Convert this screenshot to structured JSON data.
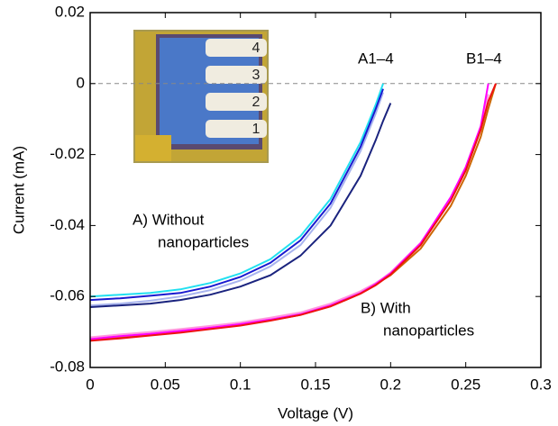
{
  "chart_data": {
    "type": "line",
    "x_label": "Voltage (V)",
    "y_label": "Current (mA)",
    "x": [
      0,
      0.02,
      0.04,
      0.06,
      0.08,
      0.1,
      0.12,
      0.14,
      0.16,
      0.18,
      0.19,
      0.195,
      0.2,
      0.22,
      0.24,
      0.25,
      0.26,
      0.265,
      0.27
    ],
    "series": [
      {
        "color": "#22e0f0",
        "values": [
          -0.06,
          -0.0595,
          -0.059,
          -0.058,
          -0.0562,
          -0.0535,
          -0.0495,
          -0.043,
          -0.0325,
          -0.0165,
          -0.006,
          0,
          null,
          null,
          null,
          null,
          null,
          null,
          null
        ]
      },
      {
        "color": "#a8b4ee",
        "values": [
          -0.0625,
          -0.062,
          -0.0612,
          -0.06,
          -0.0582,
          -0.0555,
          -0.0515,
          -0.0455,
          -0.035,
          -0.019,
          -0.0085,
          -0.0025,
          null,
          null,
          null,
          null,
          null,
          null,
          null
        ]
      },
      {
        "color": "#1a1ad0",
        "values": [
          -0.061,
          -0.0605,
          -0.0598,
          -0.059,
          -0.0572,
          -0.0545,
          -0.0505,
          -0.0442,
          -0.0338,
          -0.0178,
          -0.0072,
          -0.0015,
          null,
          null,
          null,
          null,
          null,
          null,
          null
        ]
      },
      {
        "color": "#1a237e",
        "values": [
          -0.063,
          -0.0625,
          -0.062,
          -0.061,
          -0.0595,
          -0.0572,
          -0.054,
          -0.0485,
          -0.04,
          -0.026,
          -0.016,
          -0.0105,
          -0.0055,
          null,
          null,
          null,
          null,
          null,
          null
        ]
      },
      {
        "color": "#cc6600",
        "values": [
          -0.0722,
          -0.0715,
          -0.0708,
          -0.07,
          -0.069,
          -0.068,
          -0.0667,
          -0.0652,
          -0.0628,
          -0.0592,
          -0.0568,
          -0.0553,
          -0.054,
          -0.0465,
          -0.0345,
          -0.026,
          -0.015,
          -0.007,
          0
        ]
      },
      {
        "color": "#ff99dd",
        "values": [
          -0.0715,
          -0.0707,
          -0.07,
          -0.0692,
          -0.0683,
          -0.0673,
          -0.066,
          -0.0645,
          -0.062,
          -0.0585,
          -0.0562,
          -0.0548,
          -0.0532,
          -0.0448,
          -0.0325,
          -0.024,
          -0.0125,
          -0.003,
          null
        ]
      },
      {
        "color": "#ff00ff",
        "values": [
          -0.072,
          -0.0712,
          -0.0705,
          -0.0697,
          -0.0688,
          -0.0678,
          -0.0665,
          -0.065,
          -0.0625,
          -0.059,
          -0.0565,
          -0.055,
          -0.0535,
          -0.045,
          -0.032,
          -0.0235,
          -0.012,
          0,
          null
        ]
      },
      {
        "color": "#ee1111",
        "values": [
          -0.0725,
          -0.0718,
          -0.071,
          -0.0702,
          -0.0692,
          -0.0682,
          -0.0668,
          -0.0652,
          -0.0628,
          -0.0592,
          -0.0568,
          -0.0553,
          -0.0538,
          -0.0455,
          -0.033,
          -0.0245,
          -0.013,
          -0.005,
          0
        ]
      }
    ],
    "xlim": [
      0,
      0.3
    ],
    "xticks": [
      0,
      0.05,
      0.1,
      0.15,
      0.2,
      0.25,
      0.3
    ],
    "ylim": [
      -0.08,
      0.02
    ],
    "yticks": [
      0.02,
      0,
      -0.02,
      -0.04,
      -0.06,
      -0.08
    ],
    "annotations": [
      [
        "A1–4"
      ],
      [
        "B1–4"
      ],
      [
        "A) Without",
        "nanoparticles"
      ],
      [
        "B) With",
        "nanoparticles"
      ]
    ],
    "inset_labels": [
      "4",
      "3",
      "2",
      "1"
    ]
  }
}
